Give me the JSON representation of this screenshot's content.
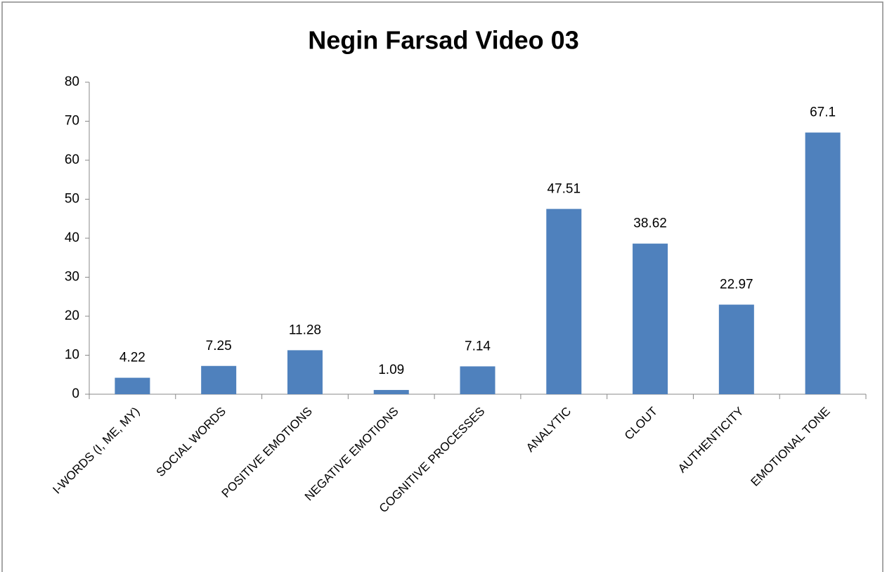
{
  "chart_data": {
    "type": "bar",
    "title": "Negin Farsad Video 03",
    "categories": [
      "I-WORDS (I, ME, MY)",
      "SOCIAL WORDS",
      "POSITIVE EMOTIONS",
      "NEGATIVE EMOTIONS",
      "COGNITIVE PROCESSES",
      "ANALYTIC",
      "CLOUT",
      "AUTHENTICITY",
      "EMOTIONAL TONE"
    ],
    "values": [
      4.22,
      7.25,
      11.28,
      1.09,
      7.14,
      47.51,
      38.62,
      22.97,
      67.1
    ],
    "color": "#4f81bd",
    "ylim": [
      0,
      80
    ],
    "yticks": [
      0,
      10,
      20,
      30,
      40,
      50,
      60,
      70,
      80
    ],
    "grid": false
  }
}
